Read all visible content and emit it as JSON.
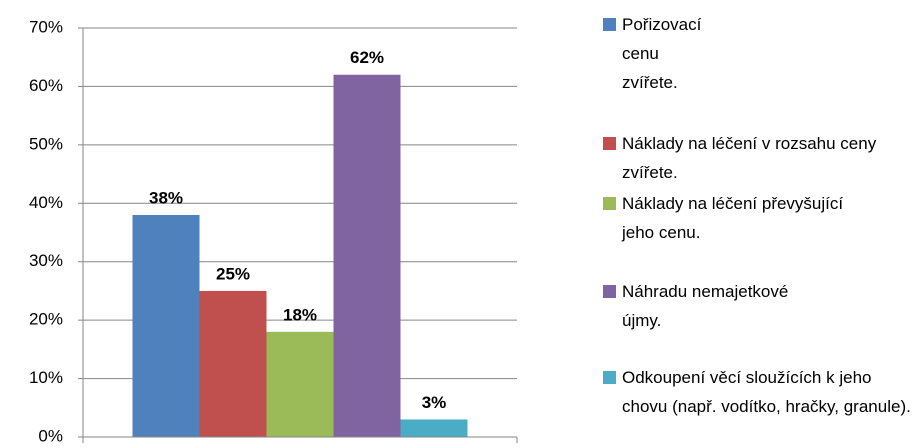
{
  "chart_data": {
    "type": "bar",
    "series": [
      {
        "name": "Pořizovací cenu zvířete.",
        "color": "#4f81bd",
        "values": [
          38
        ],
        "value_labels": [
          "38%"
        ]
      },
      {
        "name": "Náklady na léčení v rozsahu ceny zvířete.",
        "color": "#c0504d",
        "values": [
          25
        ],
        "value_labels": [
          "25%"
        ]
      },
      {
        "name": "Náklady na léčení převyšující jeho cenu.",
        "color": "#9bbb59",
        "values": [
          18
        ],
        "value_labels": [
          "18%"
        ]
      },
      {
        "name": "Náhradu nemajetkové újmy.",
        "color": "#8064a2",
        "values": [
          62
        ],
        "value_labels": [
          "62%"
        ]
      },
      {
        "name": "Odkoupení věcí sloužících k jeho chovu (např. vodítko, hračky, granule).",
        "color": "#4bacc6",
        "values": [
          3
        ],
        "value_labels": [
          "3%"
        ]
      }
    ],
    "ylim": [
      0,
      70
    ],
    "yticks": [
      {
        "value": 0,
        "label": "0%"
      },
      {
        "value": 10,
        "label": "10%"
      },
      {
        "value": 20,
        "label": "20%"
      },
      {
        "value": 30,
        "label": "30%"
      },
      {
        "value": 40,
        "label": "40%"
      },
      {
        "value": 50,
        "label": "50%"
      },
      {
        "value": 60,
        "label": "60%"
      },
      {
        "value": 70,
        "label": "70%"
      }
    ],
    "grid": true
  }
}
